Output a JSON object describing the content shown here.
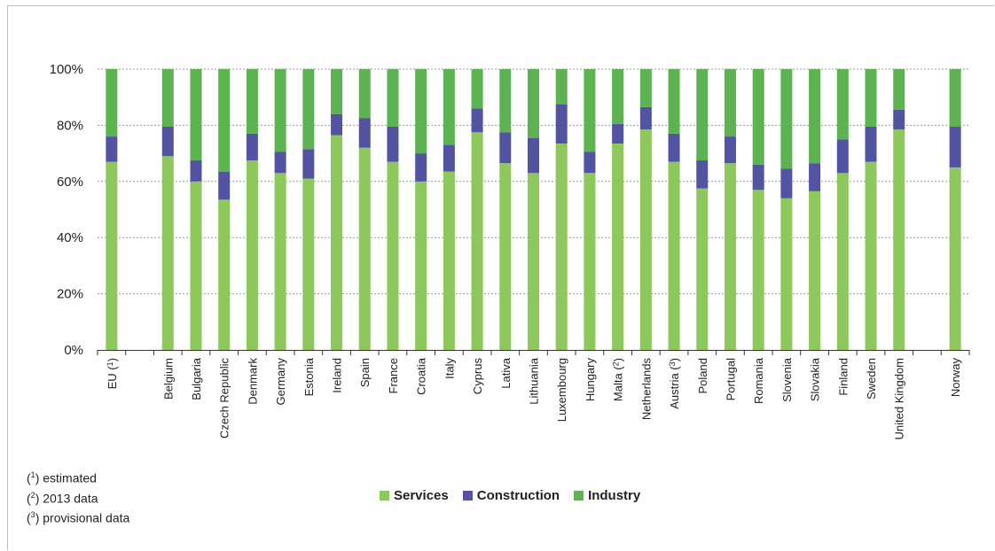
{
  "chart_data": {
    "type": "bar",
    "stacked": true,
    "ylim": [
      0,
      100
    ],
    "yticks": [
      "0%",
      "20%",
      "40%",
      "60%",
      "80%",
      "100%"
    ],
    "grid": true,
    "legend_position": "bottom",
    "categories": [
      "EU (1)",
      "",
      "Belgium",
      "Bulgaria",
      "Czech Republic",
      "Denmark",
      "Germany",
      "Estonia",
      "Ireland",
      "Spain",
      "France",
      "Croatia",
      "Italy",
      "Cyprus",
      "Lativa",
      "Lithuania",
      "Luxembourg",
      "Hungary",
      "Malta (2)",
      "Netherlands",
      "Austria (3)",
      "Poland",
      "Portugal",
      "Romania",
      "Slovenia",
      "Slovakia",
      "Finland",
      "Sweden",
      "United Kingdom",
      "",
      "Norway"
    ],
    "series": [
      {
        "name": "Services",
        "color": "#8cc85a",
        "values": [
          67,
          null,
          69,
          60,
          53.5,
          67.5,
          63,
          61,
          76.5,
          72,
          67,
          60,
          63.5,
          77.5,
          66.5,
          63,
          73.5,
          63,
          73.5,
          78.5,
          67,
          57.5,
          66.5,
          57,
          54,
          56.5,
          63,
          67,
          78.5,
          null,
          65
        ]
      },
      {
        "name": "Construction",
        "color": "#5253a3",
        "values": [
          9,
          null,
          10.5,
          7.5,
          10,
          9.5,
          7.5,
          10.5,
          7.5,
          10.5,
          12.5,
          10,
          9.5,
          8.5,
          11,
          12.5,
          14,
          7.5,
          7,
          8,
          10,
          10,
          9.5,
          9,
          10.5,
          10,
          12,
          12.5,
          7,
          null,
          14.5
        ]
      },
      {
        "name": "Industry",
        "color": "#5bb450",
        "values": [
          24,
          null,
          20.5,
          32.5,
          36.5,
          23,
          29.5,
          28.5,
          16,
          17.5,
          20.5,
          30,
          27,
          14,
          22.5,
          24.5,
          12.5,
          29.5,
          19.5,
          13.5,
          23,
          32.5,
          24,
          34,
          35.5,
          33.5,
          25,
          20.5,
          14.5,
          null,
          20.5
        ]
      }
    ]
  },
  "notes": [
    {
      "sup": "1",
      "text": " estimated"
    },
    {
      "sup": "2",
      "text": " 2013 data"
    },
    {
      "sup": "3",
      "text": " provisional data"
    }
  ]
}
